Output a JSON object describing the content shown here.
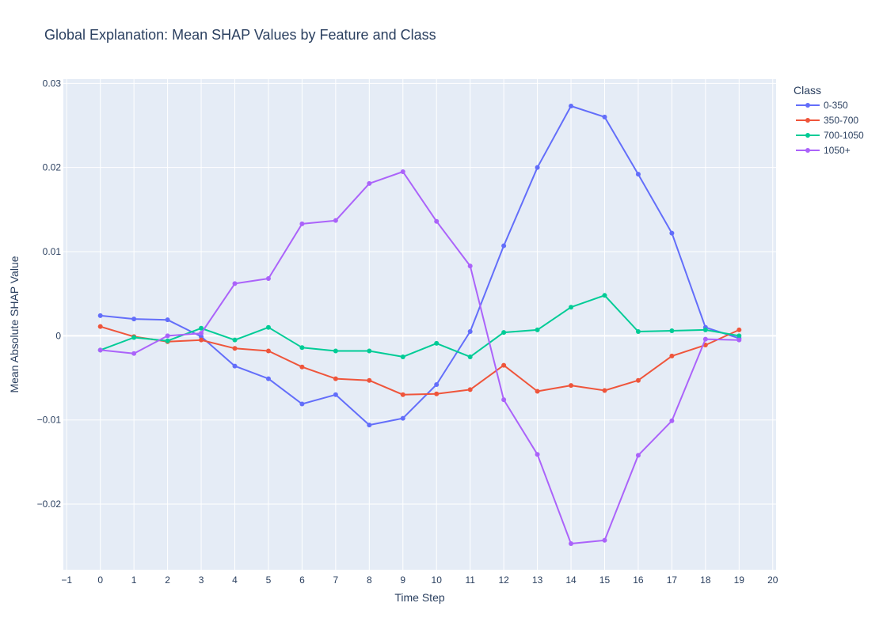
{
  "chart_data": {
    "type": "line",
    "title": "Global Explanation: Mean SHAP Values by Feature and Class",
    "xlabel": "Time Step",
    "ylabel": "Mean Absolute SHAP Value",
    "xlim": [
      -1.1,
      20.1
    ],
    "ylim": [
      -0.0278,
      0.0305
    ],
    "x_ticks": [
      -1,
      0,
      1,
      2,
      3,
      4,
      5,
      6,
      7,
      8,
      9,
      10,
      11,
      12,
      13,
      14,
      15,
      16,
      17,
      18,
      19,
      20
    ],
    "y_ticks": [
      {
        "value": -0.02,
        "label": "−0.02"
      },
      {
        "value": -0.01,
        "label": "−0.01"
      },
      {
        "value": 0,
        "label": "0"
      },
      {
        "value": 0.01,
        "label": "0.01"
      },
      {
        "value": 0.02,
        "label": "0.02"
      },
      {
        "value": 0.03,
        "label": "0.03"
      }
    ],
    "grid": true,
    "legend": {
      "title": "Class",
      "placement": "top-right"
    },
    "x": [
      0,
      1,
      2,
      3,
      4,
      5,
      6,
      7,
      8,
      9,
      10,
      11,
      12,
      13,
      14,
      15,
      16,
      17,
      18,
      19
    ],
    "series": [
      {
        "name": "0-350",
        "color": "#636efa",
        "values": [
          0.0024,
          0.002,
          0.0019,
          -0.0001,
          -0.0036,
          -0.0051,
          -0.0081,
          -0.007,
          -0.0106,
          -0.0098,
          -0.0058,
          0.0005,
          0.0107,
          0.02,
          0.0273,
          0.026,
          0.0192,
          0.0122,
          0.001,
          -0.0003
        ]
      },
      {
        "name": "350-700",
        "color": "#ef553b",
        "values": [
          0.0011,
          -0.0001,
          -0.0007,
          -0.0005,
          -0.0015,
          -0.0018,
          -0.0037,
          -0.0051,
          -0.0053,
          -0.007,
          -0.0069,
          -0.0064,
          -0.0035,
          -0.0066,
          -0.0059,
          -0.0065,
          -0.0053,
          -0.0024,
          -0.0011,
          0.0007
        ]
      },
      {
        "name": "700-1050",
        "color": "#00cc96",
        "values": [
          -0.0017,
          -0.0002,
          -0.0006,
          0.0009,
          -0.0005,
          0.001,
          -0.0014,
          -0.0018,
          -0.0018,
          -0.0025,
          -0.0009,
          -0.0025,
          0.0004,
          0.0007,
          0.0034,
          0.0048,
          0.0005,
          0.0006,
          0.0007,
          0.0
        ]
      },
      {
        "name": "1050+",
        "color": "#ab63fa",
        "values": [
          -0.0017,
          -0.0021,
          0.0,
          0.0003,
          0.0062,
          0.0068,
          0.0133,
          0.0137,
          0.0181,
          0.0195,
          0.0136,
          0.0083,
          -0.0076,
          -0.0141,
          -0.0247,
          -0.0243,
          -0.0142,
          -0.0101,
          -0.0004,
          -0.0005
        ]
      }
    ]
  }
}
